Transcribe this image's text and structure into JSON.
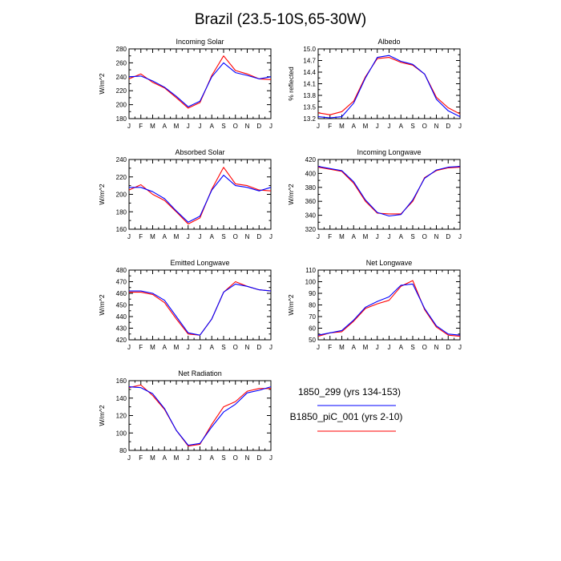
{
  "title": "Brazil (23.5-10S,65-30W)",
  "colors": {
    "series_1": "#0000ff",
    "series_2": "#ff0000",
    "axis": "#000000"
  },
  "legend": [
    {
      "name": "1850_299 (yrs 134-153)",
      "color": "#0000ff"
    },
    {
      "name": "B1850_piC_001 (yrs 2-10)",
      "color": "#ff0000"
    }
  ],
  "chart_data": [
    {
      "type": "line",
      "title": "Incoming Solar",
      "ylabel": "W/m^2",
      "categories": [
        "J",
        "F",
        "M",
        "A",
        "M",
        "J",
        "J",
        "A",
        "S",
        "O",
        "N",
        "D",
        "J"
      ],
      "ylim": [
        180,
        280
      ],
      "yticks": [
        180,
        200,
        220,
        240,
        260,
        280
      ],
      "ytick_labels": [
        "180",
        "200",
        "220",
        "240",
        "260",
        "280"
      ],
      "series": [
        {
          "name": "1850_299 (yrs 134-153)",
          "color": "#0000ff",
          "values": [
            240,
            241,
            234,
            225,
            212,
            197,
            205,
            240,
            260,
            246,
            242,
            237,
            240
          ]
        },
        {
          "name": "B1850_piC_001 (yrs 2-10)",
          "color": "#ff0000",
          "values": [
            237,
            244,
            232,
            224,
            210,
            195,
            203,
            242,
            270,
            249,
            244,
            237,
            236
          ]
        }
      ]
    },
    {
      "type": "line",
      "title": "Albedo",
      "ylabel": "% reflected",
      "categories": [
        "J",
        "F",
        "M",
        "A",
        "M",
        "J",
        "J",
        "A",
        "S",
        "O",
        "N",
        "D",
        "J"
      ],
      "ylim": [
        13.2,
        15.0
      ],
      "yticks": [
        13.2,
        13.5,
        13.8,
        14.1,
        14.4,
        14.7,
        15.0
      ],
      "ytick_labels": [
        "13.2",
        "13.5",
        "13.8",
        "14.1",
        "14.4",
        "14.7",
        "15.0"
      ],
      "series": [
        {
          "name": "1850_299 (yrs 134-153)",
          "color": "#0000ff",
          "values": [
            13.25,
            13.22,
            13.25,
            13.6,
            14.25,
            14.78,
            14.83,
            14.68,
            14.6,
            14.35,
            13.7,
            13.4,
            13.25
          ]
        },
        {
          "name": "B1850_piC_001 (yrs 2-10)",
          "color": "#ff0000",
          "values": [
            13.35,
            13.3,
            13.38,
            13.65,
            14.28,
            14.75,
            14.78,
            14.65,
            14.58,
            14.35,
            13.75,
            13.48,
            13.32
          ]
        }
      ]
    },
    {
      "type": "line",
      "title": "Absorbed Solar",
      "ylabel": "W/m^2",
      "categories": [
        "J",
        "F",
        "M",
        "A",
        "M",
        "J",
        "J",
        "A",
        "S",
        "O",
        "N",
        "D",
        "J"
      ],
      "ylim": [
        160,
        240
      ],
      "yticks": [
        160,
        180,
        200,
        220,
        240
      ],
      "ytick_labels": [
        "160",
        "180",
        "200",
        "220",
        "240"
      ],
      "series": [
        {
          "name": "1850_299 (yrs 134-153)",
          "color": "#0000ff",
          "values": [
            208,
            208,
            203,
            195,
            181,
            168,
            175,
            205,
            222,
            210,
            208,
            204,
            208
          ]
        },
        {
          "name": "B1850_piC_001 (yrs 2-10)",
          "color": "#ff0000",
          "values": [
            205,
            211,
            200,
            193,
            180,
            166,
            173,
            206,
            231,
            212,
            210,
            205,
            204
          ]
        }
      ]
    },
    {
      "type": "line",
      "title": "Incoming Longwave",
      "ylabel": "W/m^2",
      "categories": [
        "J",
        "F",
        "M",
        "A",
        "M",
        "J",
        "J",
        "A",
        "S",
        "O",
        "N",
        "D",
        "J"
      ],
      "ylim": [
        320,
        420
      ],
      "yticks": [
        320,
        340,
        360,
        380,
        400,
        420
      ],
      "ytick_labels": [
        "320",
        "340",
        "360",
        "380",
        "400",
        "420"
      ],
      "series": [
        {
          "name": "1850_299 (yrs 134-153)",
          "color": "#0000ff",
          "values": [
            410,
            407,
            404,
            388,
            362,
            344,
            339,
            341,
            362,
            393,
            405,
            409,
            410
          ]
        },
        {
          "name": "B1850_piC_001 (yrs 2-10)",
          "color": "#ff0000",
          "values": [
            409,
            406,
            403,
            386,
            360,
            343,
            342,
            342,
            360,
            394,
            404,
            408,
            409
          ]
        }
      ]
    },
    {
      "type": "line",
      "title": "Emitted Longwave",
      "ylabel": "W/m^2",
      "categories": [
        "J",
        "F",
        "M",
        "A",
        "M",
        "J",
        "J",
        "A",
        "S",
        "O",
        "N",
        "D",
        "J"
      ],
      "ylim": [
        420,
        480
      ],
      "yticks": [
        420,
        430,
        440,
        450,
        460,
        470,
        480
      ],
      "ytick_labels": [
        "420",
        "430",
        "440",
        "450",
        "460",
        "470",
        "480"
      ],
      "series": [
        {
          "name": "1850_299 (yrs 134-153)",
          "color": "#0000ff",
          "values": [
            462,
            462,
            460,
            454,
            440,
            426,
            424,
            438,
            461,
            468,
            466,
            463,
            462
          ]
        },
        {
          "name": "B1850_piC_001 (yrs 2-10)",
          "color": "#ff0000",
          "values": [
            461,
            461,
            459,
            452,
            438,
            425,
            424,
            438,
            461,
            470,
            466,
            463,
            462
          ]
        }
      ]
    },
    {
      "type": "line",
      "title": "Net Longwave",
      "ylabel": "W/m^2",
      "categories": [
        "J",
        "F",
        "M",
        "A",
        "M",
        "J",
        "J",
        "A",
        "S",
        "O",
        "N",
        "D",
        "J"
      ],
      "ylim": [
        50,
        110
      ],
      "yticks": [
        50,
        60,
        70,
        80,
        90,
        100,
        110
      ],
      "ytick_labels": [
        "50",
        "60",
        "70",
        "80",
        "90",
        "100",
        "110"
      ],
      "series": [
        {
          "name": "1850_299 (yrs 134-153)",
          "color": "#0000ff",
          "values": [
            54,
            56,
            58,
            67,
            78,
            83,
            87,
            97,
            98,
            77,
            62,
            55,
            54
          ]
        },
        {
          "name": "B1850_piC_001 (yrs 2-10)",
          "color": "#ff0000",
          "values": [
            53,
            56,
            57,
            66,
            77,
            81,
            84,
            96,
            101,
            76,
            61,
            54,
            53
          ]
        }
      ]
    },
    {
      "type": "line",
      "title": "Net Radiation",
      "ylabel": "W/m^2",
      "categories": [
        "J",
        "F",
        "M",
        "A",
        "M",
        "J",
        "J",
        "A",
        "S",
        "O",
        "N",
        "D",
        "J"
      ],
      "ylim": [
        80,
        160
      ],
      "yticks": [
        80,
        100,
        120,
        140,
        160
      ],
      "ytick_labels": [
        "80",
        "100",
        "120",
        "140",
        "160"
      ],
      "series": [
        {
          "name": "1850_299 (yrs 134-153)",
          "color": "#0000ff",
          "values": [
            153,
            152,
            145,
            128,
            103,
            86,
            88,
            107,
            124,
            133,
            146,
            149,
            153
          ]
        },
        {
          "name": "B1850_piC_001 (yrs 2-10)",
          "color": "#ff0000",
          "values": [
            152,
            155,
            143,
            127,
            103,
            85,
            87,
            110,
            130,
            136,
            148,
            151,
            151
          ]
        }
      ]
    }
  ]
}
